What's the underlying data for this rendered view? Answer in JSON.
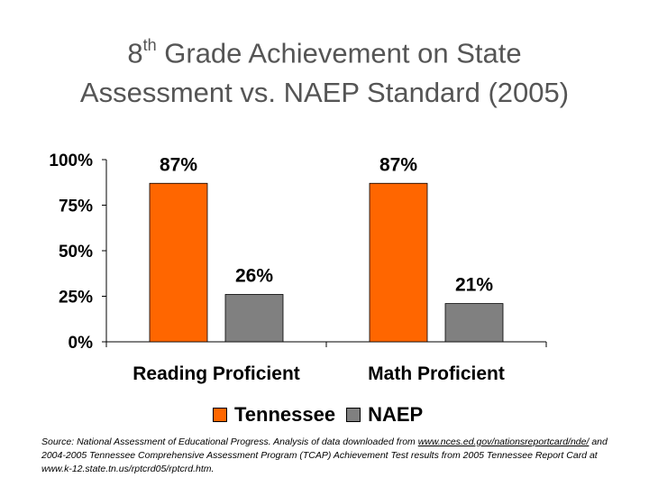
{
  "title": {
    "line1_prefix": "8",
    "line1_sup": "th",
    "line1_rest": " Grade Achievement on State",
    "line2": "Assessment vs. NAEP Standard (2005)"
  },
  "chart_data": {
    "type": "bar",
    "title": "8th Grade Achievement on State Assessment vs. NAEP Standard (2005)",
    "categories": [
      "Reading Proficient",
      "Math Proficient"
    ],
    "series": [
      {
        "name": "Tennessee",
        "values": [
          87,
          87
        ],
        "labels": [
          "87%",
          "87%"
        ],
        "color": "#ff6600"
      },
      {
        "name": "NAEP",
        "values": [
          26,
          21
        ],
        "labels": [
          "26%",
          "21%"
        ],
        "color": "#808080"
      }
    ],
    "yticks": [
      {
        "value": 100,
        "label": "100%"
      },
      {
        "value": 75,
        "label": "75%"
      },
      {
        "value": 50,
        "label": "50%"
      },
      {
        "value": 25,
        "label": "25%"
      },
      {
        "value": 0,
        "label": "0%"
      }
    ],
    "ylim": [
      0,
      100
    ],
    "grid": false,
    "legend_position": "bottom"
  },
  "source": {
    "prefix": "Source: National Assessment of Educational Progress.  Analysis of data downloaded from",
    "link": "www.nces.ed.gov/nationsreportcard/nde/",
    "suffix": " and 2004-2005 Tennessee Comprehensive Assessment Program (TCAP) Achievement Test results from 2005 Tennessee Report Card at www.k-12.state.tn.us/rptcrd05/rptcrd.htm."
  }
}
